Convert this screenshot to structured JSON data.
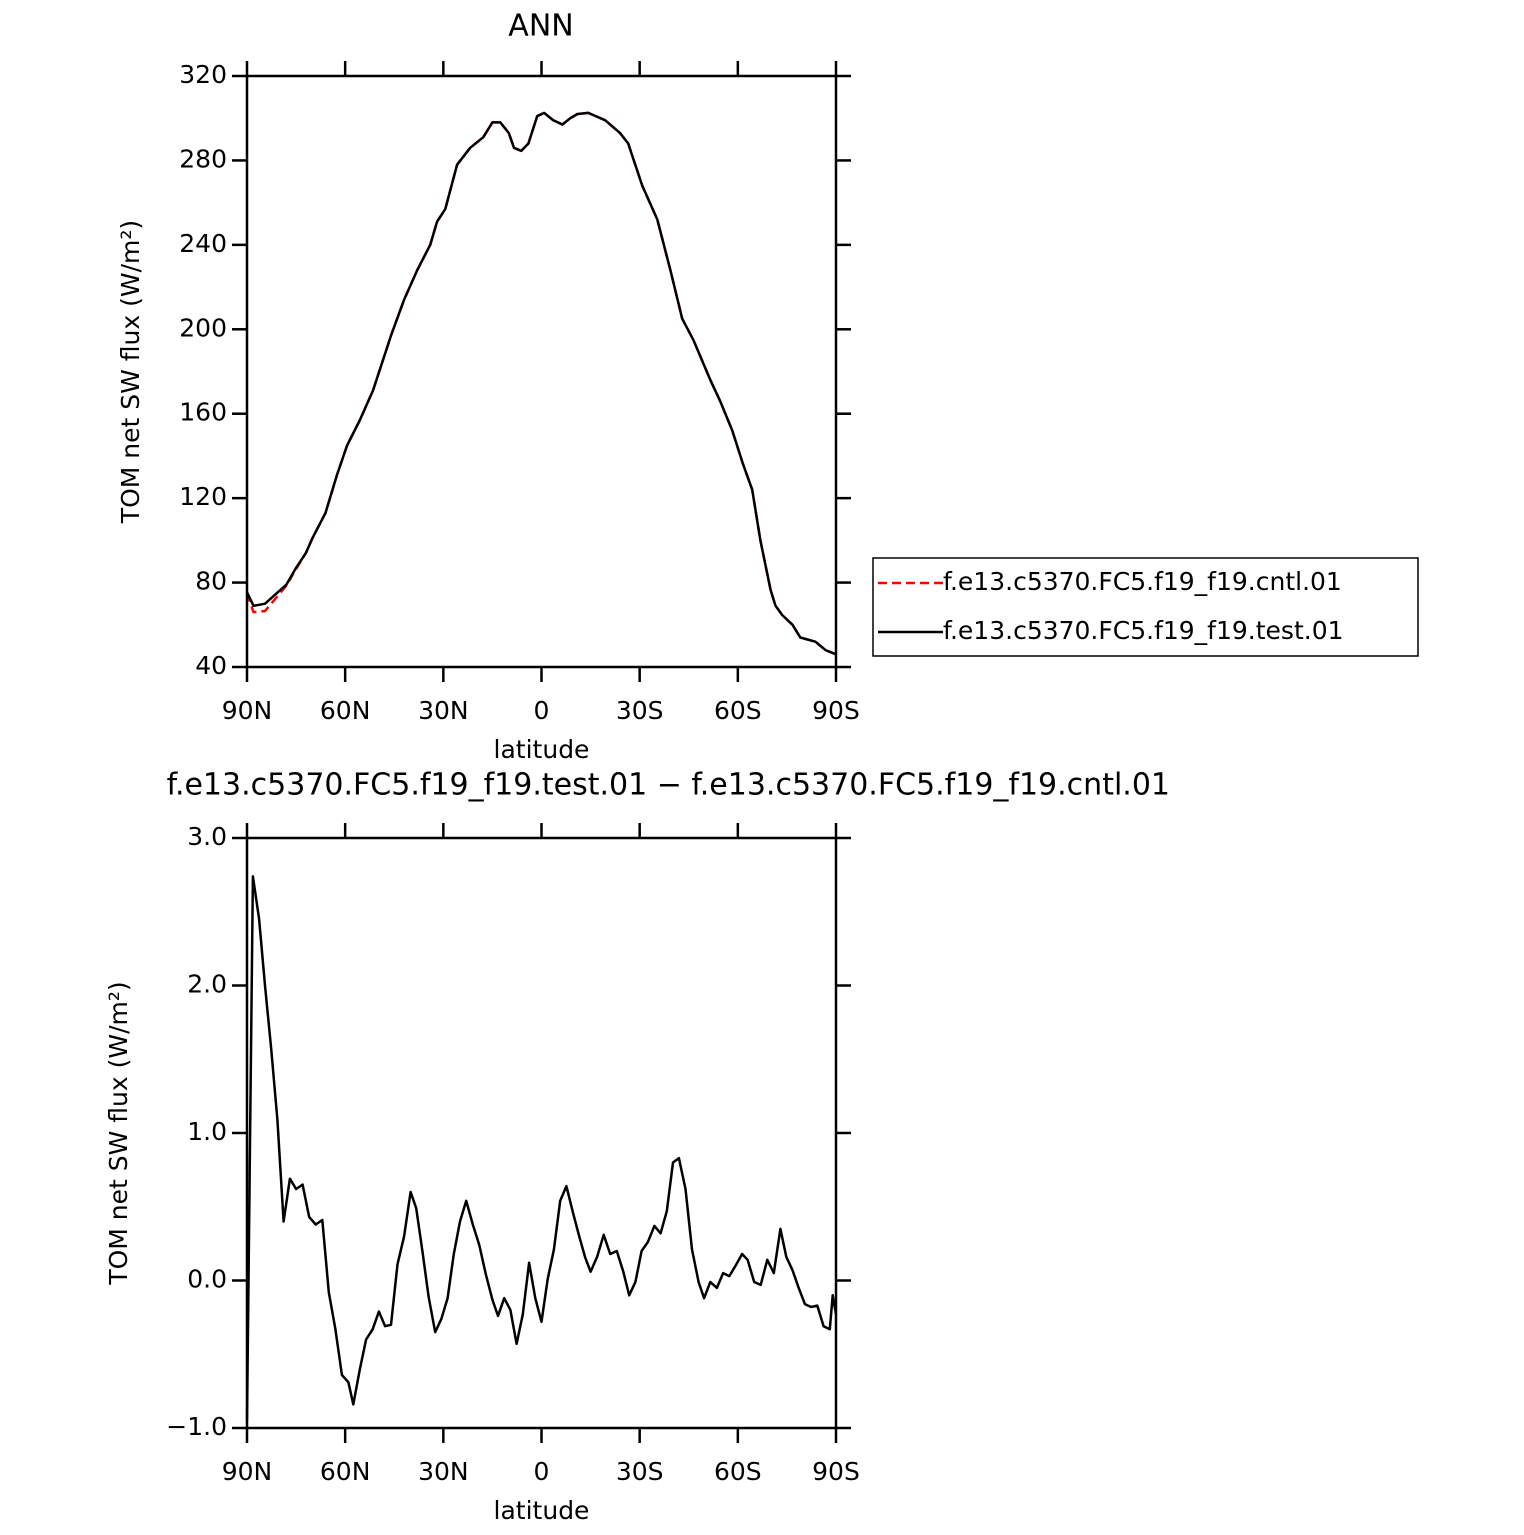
{
  "chart_data": [
    {
      "type": "line",
      "title": "ANN",
      "xlabel": "latitude",
      "ylabel": "TOM net SW flux (W/m²)",
      "xlim": [
        90,
        -90
      ],
      "xticks": [
        {
          "value": 90,
          "label": "90N"
        },
        {
          "value": 60,
          "label": "60N"
        },
        {
          "value": 30,
          "label": "30N"
        },
        0,
        {
          "value": -30,
          "label": "30S"
        },
        {
          "value": -60,
          "label": "60S"
        },
        {
          "value": -90,
          "label": "90S"
        }
      ],
      "ylim": [
        40,
        320
      ],
      "yticks": [
        40,
        80,
        120,
        160,
        200,
        240,
        280,
        320
      ],
      "legend": "right",
      "x": [
        90,
        88,
        84.5,
        78,
        75,
        72,
        70,
        66,
        62.5,
        59.4,
        55.5,
        51.5,
        46,
        42,
        38,
        34,
        31.9,
        29.4,
        25.8,
        21.8,
        17.8,
        15,
        12.6,
        10,
        8.4,
        6.2,
        4,
        1.3,
        -0.8,
        -3.6,
        -6.4,
        -8.8,
        -11,
        -14.3,
        -19.5,
        -24,
        -26.5,
        -30.8,
        -35.4,
        -39.4,
        -43,
        -46.4,
        -51.6,
        -54.7,
        -58.3,
        -61.4,
        -64.4,
        -66.9,
        -70,
        -71.5,
        -73.6,
        -76.7,
        -79.1,
        -83.7,
        -86.8,
        -90
      ],
      "series": [
        {
          "name": "f.e13.c5370.FC5.f19_f19.cntl.01",
          "color": "#ff0000",
          "line_style": "dashed",
          "values": [
            75,
            66,
            66.5,
            78.5,
            86.5,
            94,
            101,
            113,
            131,
            145,
            157,
            171,
            197,
            214,
            228,
            240,
            251,
            257,
            278,
            286,
            291,
            298,
            298,
            293,
            286,
            284.5,
            288,
            301,
            302.5,
            299,
            297,
            300,
            302,
            302.5,
            299,
            293,
            288,
            268,
            252,
            228,
            205,
            195,
            176,
            165.6,
            152,
            137,
            124,
            100,
            76.5,
            69,
            64.6,
            60,
            54,
            52,
            48,
            46
          ]
        },
        {
          "name": "f.e13.c5370.FC5.f19_f19.test.01",
          "color": "#000000",
          "line_style": "solid",
          "values": [
            75.5,
            69,
            70,
            79,
            87,
            94,
            101,
            113,
            131,
            145,
            157,
            171,
            197,
            214,
            228,
            240,
            251,
            257,
            278,
            286,
            291,
            298,
            298,
            293,
            286,
            284.5,
            288,
            301,
            302.5,
            299,
            297,
            300,
            302,
            302.5,
            299,
            293,
            288,
            268,
            252,
            228,
            205,
            195,
            176,
            165.6,
            152,
            137,
            124,
            100,
            76.5,
            69,
            64.6,
            60,
            54,
            52,
            48,
            46
          ]
        }
      ]
    },
    {
      "type": "line",
      "title": "f.e13.c5370.FC5.f19_f19.test.01 − f.e13.c5370.FC5.f19_f19.cntl.01",
      "xlabel": "latitude",
      "ylabel": "TOM net SW flux (W/m²)",
      "xlim": [
        90,
        -90
      ],
      "xticks": [
        {
          "value": 90,
          "label": "90N"
        },
        {
          "value": 60,
          "label": "60N"
        },
        {
          "value": 30,
          "label": "30N"
        },
        0,
        {
          "value": -30,
          "label": "30S"
        },
        {
          "value": -60,
          "label": "60S"
        },
        {
          "value": -90,
          "label": "90S"
        }
      ],
      "ylim": [
        -1,
        3
      ],
      "yticks": [
        {
          "value": -1,
          "label": "−1.0"
        },
        {
          "value": 0,
          "label": "0.0"
        },
        {
          "value": 1,
          "label": "1.0"
        },
        {
          "value": 2,
          "label": "2.0"
        },
        {
          "value": 3,
          "label": "3.0"
        }
      ],
      "x": [
        90,
        88.2,
        86.3,
        84.5,
        82.6,
        80.7,
        78.8,
        76.9,
        75,
        73,
        71,
        69,
        67,
        65,
        63,
        61,
        59,
        57.5,
        55.5,
        53.6,
        51.6,
        49.7,
        47.8,
        46,
        44,
        42,
        40,
        38.3,
        36.4,
        34.5,
        32.5,
        30.6,
        28.7,
        26.8,
        24.9,
        23,
        21,
        19,
        17,
        15,
        13.3,
        11.4,
        9.5,
        7.6,
        5.7,
        3.8,
        1.9,
        0,
        -1.9,
        -3.8,
        -5.7,
        -7.6,
        -9.5,
        -11.4,
        -13.3,
        -15,
        -17,
        -19,
        -21,
        -23,
        -25,
        -26.8,
        -28.7,
        -30.6,
        -32.5,
        -34.5,
        -36.4,
        -38.3,
        -40.2,
        -42,
        -44,
        -46,
        -48,
        -49.7,
        -51.6,
        -53.6,
        -55.5,
        -57.4,
        -59.3,
        -61.3,
        -63,
        -65,
        -67,
        -69,
        -71,
        -73,
        -74.8,
        -76.7,
        -78.6,
        -80.5,
        -82.4,
        -84.3,
        -86.2,
        -88.1,
        -89,
        -90
      ],
      "series": [
        {
          "color": "#000000",
          "line_style": "solid",
          "values": [
            -0.95,
            2.74,
            2.45,
            2.0,
            1.57,
            1.09,
            0.4,
            0.69,
            0.62,
            0.65,
            0.43,
            0.38,
            0.41,
            -0.08,
            -0.33,
            -0.64,
            -0.69,
            -0.84,
            -0.6,
            -0.4,
            -0.33,
            -0.21,
            -0.31,
            -0.3,
            0.11,
            0.3,
            0.6,
            0.49,
            0.2,
            -0.11,
            -0.35,
            -0.26,
            -0.12,
            0.18,
            0.4,
            0.54,
            0.38,
            0.24,
            0.04,
            -0.13,
            -0.24,
            -0.12,
            -0.2,
            -0.43,
            -0.23,
            0.12,
            -0.12,
            -0.28,
            0.01,
            0.21,
            0.54,
            0.64,
            0.47,
            0.31,
            0.16,
            0.06,
            0.16,
            0.31,
            0.18,
            0.2,
            0.06,
            -0.1,
            -0.01,
            0.2,
            0.26,
            0.37,
            0.32,
            0.47,
            0.8,
            0.83,
            0.62,
            0.21,
            -0.01,
            -0.12,
            -0.01,
            -0.05,
            0.05,
            0.03,
            0.1,
            0.18,
            0.14,
            -0.01,
            -0.03,
            0.14,
            0.05,
            0.35,
            0.16,
            0.07,
            -0.05,
            -0.16,
            -0.18,
            -0.17,
            -0.31,
            -0.33,
            -0.1,
            -0.23
          ]
        }
      ]
    }
  ]
}
